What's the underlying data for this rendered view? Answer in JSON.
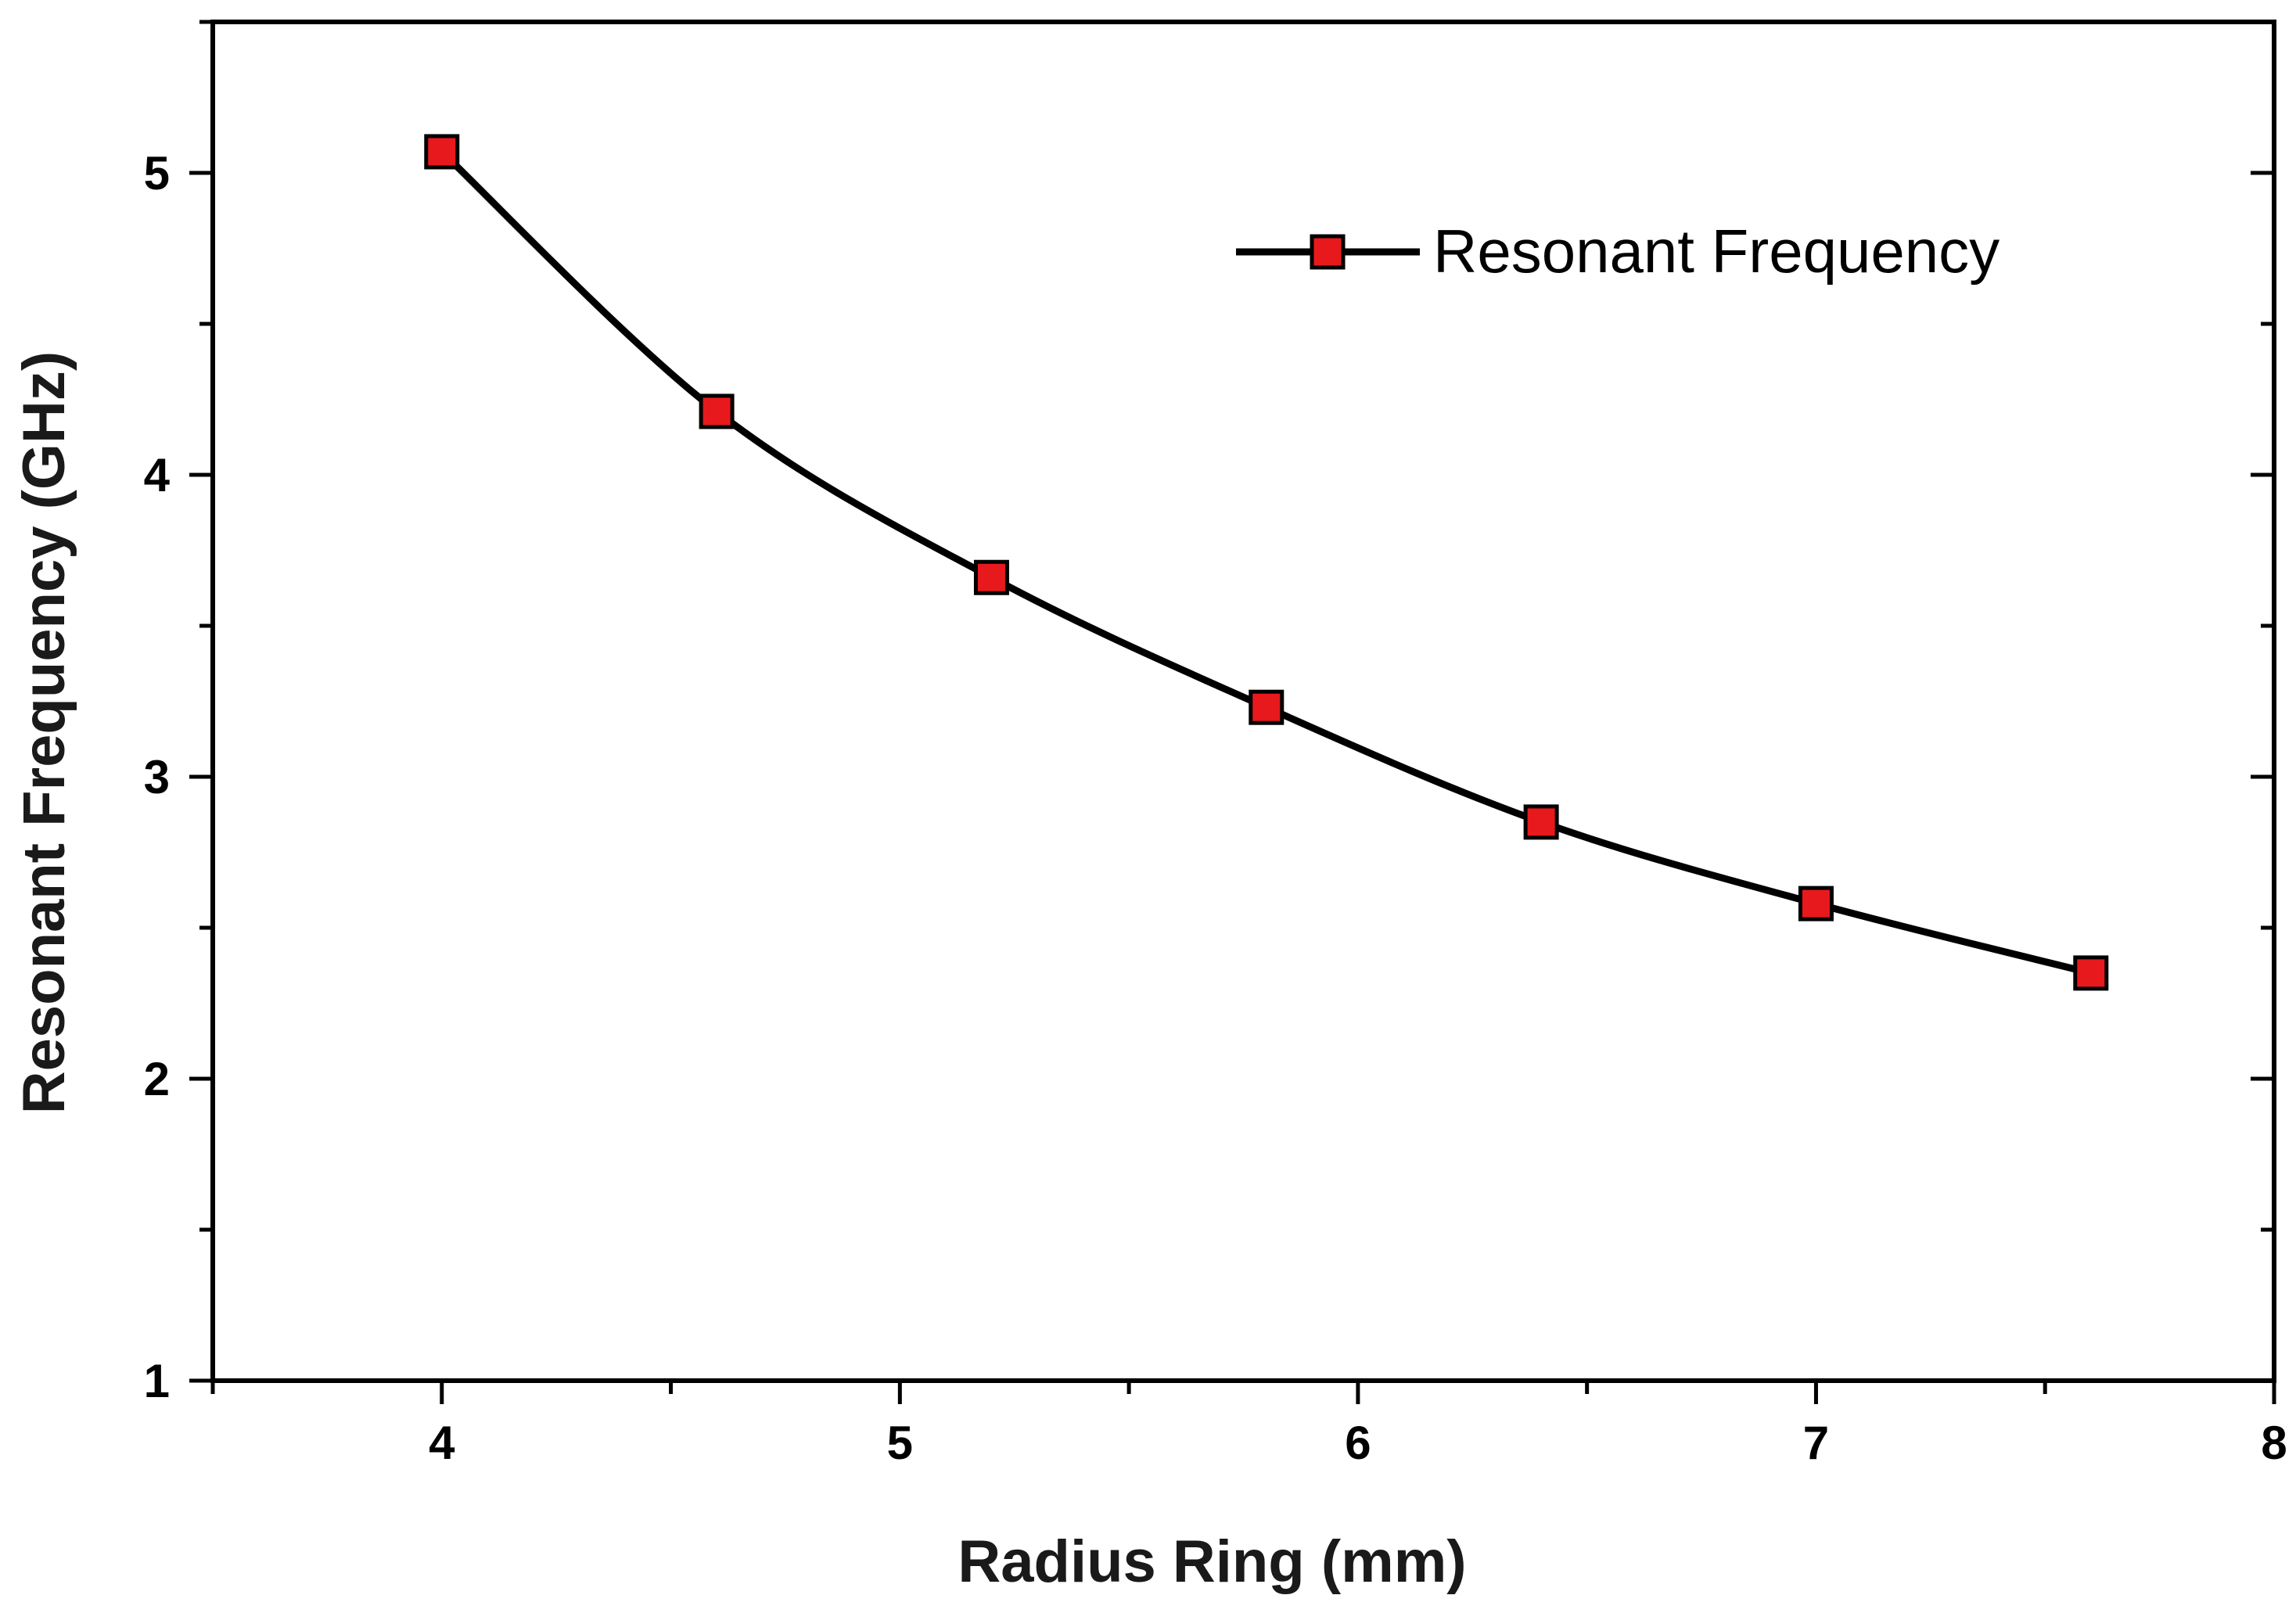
{
  "chart_data": {
    "type": "line",
    "title": "",
    "xlabel": "Radius Ring (mm)",
    "ylabel": "Resonant Frequency (GHz)",
    "xlim": [
      3.5,
      8
    ],
    "ylim": [
      1,
      5.5
    ],
    "x_ticks": [
      4,
      5,
      6,
      7,
      8
    ],
    "y_ticks": [
      1,
      2,
      3,
      4,
      5
    ],
    "x_minor_step": 0.5,
    "y_minor_step": 0.5,
    "grid": false,
    "legend_position": "top-right",
    "series": [
      {
        "name": "Resonant Frequency",
        "color": "#000000",
        "marker": "square",
        "marker_color": "#e8191c",
        "x": [
          4.0,
          4.6,
          5.2,
          5.8,
          6.4,
          7.0,
          7.6
        ],
        "y": [
          5.07,
          4.21,
          3.66,
          3.23,
          2.85,
          2.58,
          2.35
        ]
      }
    ]
  }
}
